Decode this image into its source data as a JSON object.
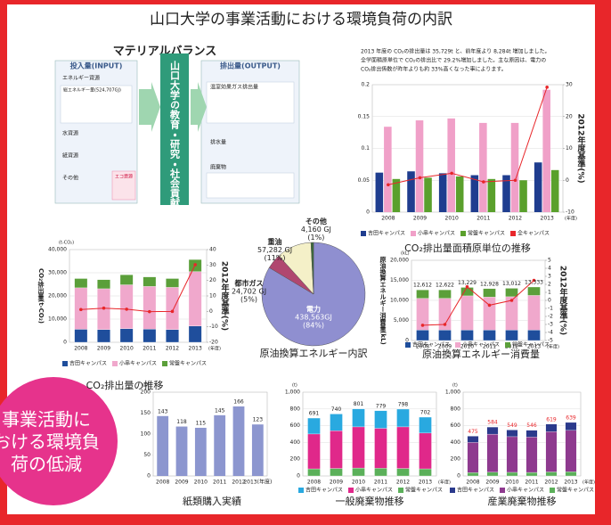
{
  "title": "山口大学の事業活動における環境負荷の内訳",
  "material_balance": {
    "title": "マテリアルバランス",
    "input_title": "投入量(INPUT)",
    "output_title": "排出量(OUTPUT)",
    "center": "山口大学の教育・研究・社会貢献活動等",
    "input_items": [
      "エネルギー資源",
      "総エネルギー量(524,707GJ)",
      "水資源",
      "紙資源",
      "その他"
    ],
    "eco": "エコ資源",
    "output_items": [
      "温室効果ガス排出量",
      "排水量",
      "廃棄物"
    ]
  },
  "note": [
    "2013 年度の CO₂の排出量は 35,729t と、前年度より 8,284t 増加しました。",
    "全学面積原単位で CO₂の排出比で 29.2%増加しました。主な原因は、電力の",
    "CO₂排出係数が昨年よりも約 33%高くなった事によります。"
  ],
  "circle_text": [
    "事業活動に",
    "おける環境負",
    "荷の低減"
  ],
  "chart_data": [
    {
      "type": "bar",
      "title": "CO₂排出量面積原単位の推移",
      "y2_label": "2012年度基準(%)",
      "x_unit": "(年度)",
      "categories": [
        "2008",
        "2009",
        "2010",
        "2011",
        "2012",
        "2013"
      ],
      "ylim": [
        0,
        0.2
      ],
      "yticks": [
        0,
        0.05,
        0.1,
        0.15,
        0.2
      ],
      "y2lim": [
        -10,
        30
      ],
      "y2ticks": [
        -10,
        0,
        10,
        20,
        30
      ],
      "grid": true,
      "series": [
        {
          "name": "吉田キャンパス",
          "color": "#1f3d8f",
          "values": [
            0.062,
            0.064,
            0.061,
            0.058,
            0.058,
            0.078
          ]
        },
        {
          "name": "小串キャンパス",
          "color": "#f0a0c8",
          "values": [
            0.134,
            0.144,
            0.147,
            0.14,
            0.14,
            0.192
          ]
        },
        {
          "name": "常盤キャンパス",
          "color": "#5aa02c",
          "values": [
            0.052,
            0.054,
            0.056,
            0.052,
            0.05,
            0.066
          ]
        },
        {
          "name": "全キャンパス",
          "color": "#e8262a",
          "type": "line",
          "axis": "y2",
          "values": [
            -1.4,
            0.8,
            2.2,
            -0.5,
            0,
            29.2
          ]
        }
      ]
    },
    {
      "type": "bar",
      "stacked": true,
      "title": "CO₂排出量の推移",
      "y_label": "CO₂排出量(t-CO₂)",
      "y_unit": "(t-CO₂)",
      "y2_label": "2012年度基準(%)",
      "x_unit": "(年度)",
      "categories": [
        "2008",
        "2009",
        "2010",
        "2011",
        "2012",
        "2013"
      ],
      "ylim": [
        0,
        40000
      ],
      "yticks": [
        0,
        {
          "value": 10000,
          "label": "10,000"
        },
        {
          "value": 20000,
          "label": "20,000"
        },
        {
          "value": 30000,
          "label": "30,000"
        },
        {
          "value": 40000,
          "label": "40,000"
        }
      ],
      "y2lim": [
        -20,
        40
      ],
      "y2ticks": [
        -20,
        -10,
        0,
        10,
        20,
        30,
        40
      ],
      "grid": true,
      "series": [
        {
          "name": "吉田キャンパス",
          "color": "#1f4e9c",
          "values": [
            5600,
            5500,
            5900,
            5700,
            5500,
            7000
          ]
        },
        {
          "name": "小串キャンパス",
          "color": "#f0a8cc",
          "values": [
            17900,
            17600,
            18900,
            18400,
            18200,
            23500
          ]
        },
        {
          "name": "常盤キャンパス",
          "color": "#5b9f3a",
          "values": [
            4000,
            3900,
            4300,
            4100,
            3800,
            5200
          ]
        },
        {
          "color": "#e8262a",
          "type": "line",
          "axis": "y2",
          "values": [
            1.2,
            2.1,
            1.4,
            -0.2,
            0,
            30.2
          ]
        }
      ]
    },
    {
      "type": "pie",
      "title": "原油換算エネルギー内訳",
      "categories": [
        "電力",
        "都市ガス",
        "重油",
        "その他"
      ],
      "values": [
        438563,
        24702,
        57282,
        4160
      ],
      "value_labels": [
        "438,563GJ",
        "24,702 GJ",
        "57,282 GJ",
        "4,160 GJ"
      ],
      "percent_labels": [
        "(84%)",
        "(5%)",
        "(11%)",
        "(1%)"
      ],
      "colors": [
        "#8f8fd0",
        "#b0476f",
        "#f4f0c8",
        "#3a6a3a"
      ]
    },
    {
      "type": "bar",
      "stacked": true,
      "title": "原油換算エネルギー消費量",
      "y_label": "原油換算エネルギー消費量(kL)",
      "y_unit": "(kL)",
      "y2_label": "2012年度基準(%)",
      "x_unit": "(年度)",
      "categories": [
        "2008",
        "2009",
        "2010",
        "2011",
        "2012",
        "2013"
      ],
      "ylim": [
        0,
        20000
      ],
      "yticks": [
        0,
        {
          "value": 5000,
          "label": "5,000"
        },
        {
          "value": 10000,
          "label": "10,000"
        },
        {
          "value": 15000,
          "label": "15,000"
        },
        {
          "value": 20000,
          "label": "20,000"
        }
      ],
      "y2lim": [
        -5,
        5
      ],
      "y2ticks": [
        -5,
        -4,
        -3,
        -2,
        -1,
        0,
        1,
        2,
        3,
        4,
        5
      ],
      "grid": true,
      "totals": [
        12612,
        12622,
        13229,
        12928,
        13012,
        13333
      ],
      "value_labels_totals": [
        "12,612",
        "12,622",
        "13,229",
        "12,928",
        "13,012",
        "13,333"
      ],
      "series": [
        {
          "name": "吉田キャンパス",
          "color": "#1f4e9c",
          "values": [
            2600,
            2600,
            2600,
            2600,
            2600,
            2600
          ]
        },
        {
          "name": "小串キャンパス",
          "color": "#f0a8cc",
          "values": [
            7912,
            7922,
            8529,
            8228,
            8312,
            8633
          ]
        },
        {
          "name": "常盤キャンパス",
          "color": "#5b9f3a",
          "values": [
            2100,
            2100,
            2100,
            2100,
            2100,
            2100
          ]
        },
        {
          "color": "#e8262a",
          "type": "line",
          "axis": "y2",
          "values": [
            -3.1,
            -3.0,
            1.7,
            -0.6,
            0,
            2.5
          ]
        }
      ]
    },
    {
      "type": "bar",
      "title": "紙類購入実績",
      "y_unit": "(t)",
      "categories": [
        "2008",
        "2009",
        "2010",
        "2011",
        "2012",
        "2013(年度)"
      ],
      "values": [
        143,
        118,
        115,
        145,
        166,
        123
      ],
      "color": "#8c96cf",
      "ylim": [
        0,
        200
      ],
      "yticks": [
        0,
        50,
        100,
        150,
        200
      ],
      "grid": false
    },
    {
      "type": "bar",
      "stacked": true,
      "stack_reverse": true,
      "title": "一般廃棄物推移",
      "y_unit": "(t)",
      "x_unit": "(年度)",
      "categories": [
        "2008",
        "2009",
        "2010",
        "2011",
        "2012",
        "2013"
      ],
      "ylim": [
        0,
        1000
      ],
      "yticks": [
        0,
        200,
        400,
        600,
        800,
        {
          "value": 1000,
          "label": "1,000"
        }
      ],
      "grid": true,
      "totals": [
        691,
        740,
        801,
        779,
        798,
        702
      ],
      "series": [
        {
          "name": "吉田キャンパス",
          "color": "#29a9e0",
          "values": [
            190,
            200,
            215,
            210,
            212,
            190
          ]
        },
        {
          "name": "小串キャンパス",
          "color": "#e0288a",
          "values": [
            416,
            450,
            491,
            477,
            496,
            427
          ]
        },
        {
          "name": "常盤キャンパス",
          "color": "#5bb05a",
          "values": [
            85,
            90,
            95,
            92,
            90,
            85
          ]
        }
      ]
    },
    {
      "type": "bar",
      "stacked": true,
      "stack_reverse": true,
      "title": "産業廃棄物推移",
      "y_unit": "(t)",
      "x_unit": "(年度)",
      "totals_color": "#e8262a",
      "categories": [
        "2008",
        "2009",
        "2010",
        "2011",
        "2012",
        "2013"
      ],
      "ylim": [
        0,
        1000
      ],
      "yticks": [
        0,
        200,
        400,
        600,
        800,
        {
          "value": 1000,
          "label": "1,000"
        }
      ],
      "grid": true,
      "totals": [
        475,
        584,
        549,
        546,
        619,
        639
      ],
      "series": [
        {
          "name": "吉田キャンパス",
          "color": "#2b3a8c",
          "values": [
            75,
            85,
            80,
            82,
            90,
            95
          ]
        },
        {
          "name": "小串キャンパス",
          "color": "#8e3a8f",
          "values": [
            360,
            454,
            426,
            422,
            481,
            494
          ]
        },
        {
          "name": "常盤キャンパス",
          "color": "#5bb05a",
          "values": [
            40,
            45,
            43,
            42,
            48,
            50
          ]
        }
      ]
    }
  ]
}
